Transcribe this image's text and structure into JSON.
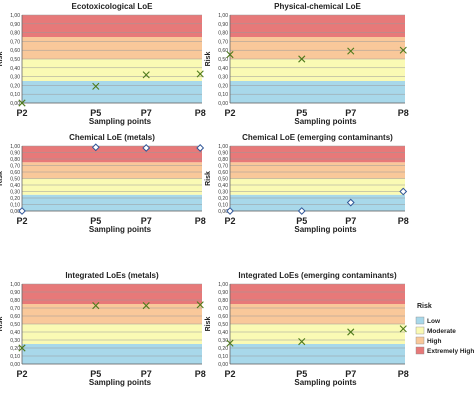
{
  "bands": [
    {
      "name": "Low",
      "from": 0.0,
      "to": 0.25,
      "color": "#a8d8ea"
    },
    {
      "name": "Moderate",
      "from": 0.25,
      "to": 0.5,
      "color": "#fafab4"
    },
    {
      "name": "High",
      "from": 0.5,
      "to": 0.75,
      "color": "#f9c89a"
    },
    {
      "name": "Extremely High",
      "from": 0.75,
      "to": 1.0,
      "color": "#e77979"
    }
  ],
  "legend": {
    "title": "Risk",
    "items": [
      "Low",
      "Moderate",
      "High",
      "Extremely High"
    ]
  },
  "y_ticks": [
    "0,00",
    "0,10",
    "0,20",
    "0,30",
    "0,40",
    "0,50",
    "0,60",
    "0,70",
    "0,80",
    "0,90",
    "1,00"
  ],
  "chart_data": [
    {
      "type": "scatter",
      "title": "Ecotoxicological LoE",
      "xlabel": "Sampling points",
      "ylabel": "Risk",
      "categories": [
        "P2",
        "P5",
        "P7",
        "P8"
      ],
      "values": [
        0.0,
        0.19,
        0.32,
        0.33
      ],
      "marker": "x",
      "ylim": [
        0,
        1
      ],
      "grid": true
    },
    {
      "type": "scatter",
      "title": "Physical-chemical LoE",
      "xlabel": "Sampling points",
      "ylabel": "Risk",
      "categories": [
        "P2",
        "P5",
        "P7",
        "P8"
      ],
      "values": [
        0.55,
        0.5,
        0.59,
        0.6
      ],
      "marker": "x",
      "ylim": [
        0,
        1
      ],
      "grid": true
    },
    {
      "type": "scatter",
      "title": "Chemical LoE (metals)",
      "xlabel": "Sampling points",
      "ylabel": "Risk",
      "categories": [
        "P2",
        "P5",
        "P7",
        "P8"
      ],
      "values": [
        0.0,
        0.98,
        0.97,
        0.97
      ],
      "marker": "diamond",
      "ylim": [
        0,
        1
      ],
      "grid": true
    },
    {
      "type": "scatter",
      "title": "Chemical LoE (emerging contaminants)",
      "xlabel": "Sampling points",
      "ylabel": "Risk",
      "categories": [
        "P2",
        "P5",
        "P7",
        "P8"
      ],
      "values": [
        0.0,
        0.0,
        0.13,
        0.3
      ],
      "marker": "diamond",
      "ylim": [
        0,
        1
      ],
      "grid": true
    },
    {
      "type": "scatter",
      "title": "Integrated LoEs (metals)",
      "xlabel": "Sampling points",
      "ylabel": "Risk",
      "categories": [
        "P2",
        "P5",
        "P7",
        "P8"
      ],
      "values": [
        0.2,
        0.73,
        0.73,
        0.74
      ],
      "marker": "x",
      "ylim": [
        0,
        1
      ],
      "grid": true
    },
    {
      "type": "scatter",
      "title": "Integrated LoEs (emerging contaminants)",
      "xlabel": "Sampling points",
      "ylabel": "Risk",
      "categories": [
        "P2",
        "P5",
        "P7",
        "P8"
      ],
      "values": [
        0.26,
        0.28,
        0.4,
        0.44
      ],
      "marker": "x",
      "ylim": [
        0,
        1
      ],
      "grid": true
    }
  ]
}
